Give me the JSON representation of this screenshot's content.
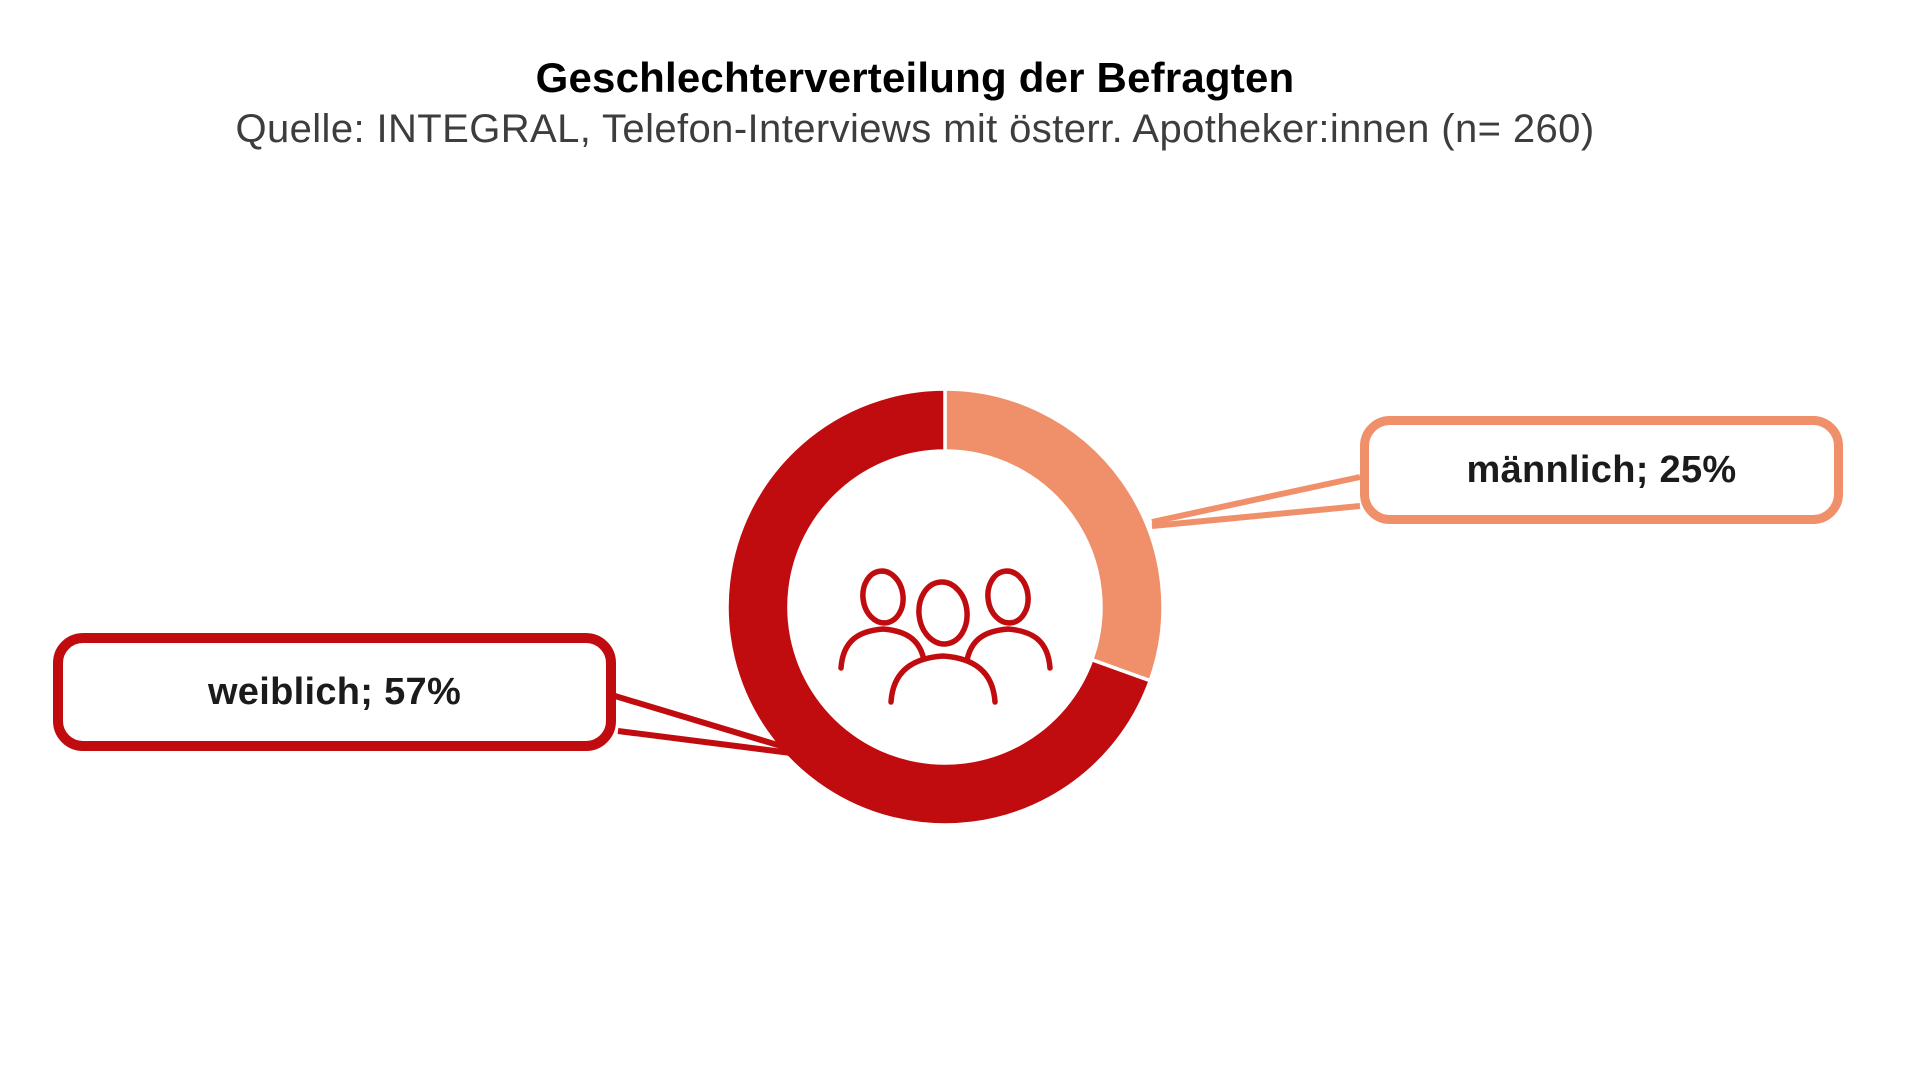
{
  "page": {
    "title": "Geschlechterverteilung der Befragten",
    "subtitle": "Quelle: INTEGRAL, Telefon-Interviews mit österr. Apotheker:innen (n= 260)"
  },
  "colors": {
    "background": "#FFFFFF",
    "maennlich": "#F0906B",
    "weiblich": "#C10C0F",
    "icon_stroke": "#C10C0F",
    "title_text": "#000000",
    "subtitle_text": "#3D3D3D",
    "label_text": "#1B1B1B",
    "slice_gap": "#FFFFFF"
  },
  "chart_data": {
    "type": "pie",
    "variant": "donut",
    "title": "Geschlechterverteilung der Befragten",
    "source": "Quelle: INTEGRAL, Telefon-Interviews mit österr. Apotheker:innen (n= 260)",
    "sample_size": 260,
    "unit": "%",
    "start_angle_deg": 0,
    "direction": "clockwise-from-top",
    "slices": [
      {
        "label": "männlich",
        "value": 25,
        "display": "männlich; 25%",
        "color": "#F0906B"
      },
      {
        "label": "weiblich",
        "value": 57,
        "display": "weiblich; 57%",
        "color": "#C10C0F"
      }
    ],
    "notes": "Slices are rendered normalized to their sum (82). Center hole contains a three-person outline icon. Values are shown in external callout speech bubbles."
  }
}
